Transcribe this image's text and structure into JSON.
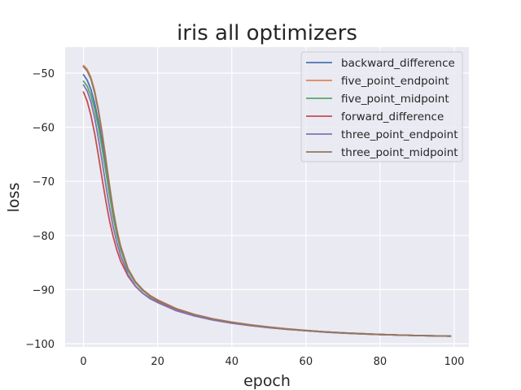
{
  "chart_data": {
    "type": "line",
    "title": "iris all optimizers",
    "xlabel": "epoch",
    "ylabel": "loss",
    "xlim": [
      -4.95,
      103.95
    ],
    "ylim": [
      -100.6,
      -45.2
    ],
    "xticks": [
      0,
      20,
      40,
      60,
      80,
      100
    ],
    "xtick_labels": [
      "0",
      "20",
      "40",
      "60",
      "80",
      "100"
    ],
    "yticks": [
      -50,
      -60,
      -70,
      -80,
      -90,
      -100
    ],
    "ytick_labels": [
      "−50",
      "−60",
      "−70",
      "−80",
      "−90",
      "−100"
    ],
    "grid": true,
    "legend_position": "upper right",
    "background_color": "#eaeaf2",
    "grid_color": "#ffffff",
    "x": [
      0,
      1,
      2,
      3,
      4,
      5,
      6,
      7,
      8,
      9,
      10,
      12,
      14,
      16,
      18,
      20,
      25,
      30,
      35,
      40,
      45,
      50,
      55,
      60,
      65,
      70,
      75,
      80,
      85,
      90,
      95,
      99
    ],
    "series": [
      {
        "name": "backward_difference",
        "color": "#4c72b0",
        "values": [
          -50.3,
          -51.3,
          -53.0,
          -55.5,
          -58.9,
          -62.8,
          -67.2,
          -71.8,
          -76.0,
          -79.5,
          -82.3,
          -86.3,
          -88.6,
          -90.1,
          -91.2,
          -92.0,
          -93.6,
          -94.7,
          -95.5,
          -96.1,
          -96.6,
          -97.0,
          -97.3,
          -97.6,
          -97.8,
          -98.0,
          -98.15,
          -98.3,
          -98.4,
          -98.5,
          -98.55,
          -98.6
        ]
      },
      {
        "name": "five_point_endpoint",
        "color": "#dd8452",
        "values": [
          -48.6,
          -49.3,
          -50.8,
          -53.2,
          -56.6,
          -60.8,
          -65.6,
          -70.6,
          -75.2,
          -78.9,
          -81.9,
          -86.1,
          -88.5,
          -90.0,
          -91.1,
          -91.9,
          -93.5,
          -94.6,
          -95.4,
          -96.0,
          -96.5,
          -96.9,
          -97.25,
          -97.55,
          -97.8,
          -98.0,
          -98.15,
          -98.3,
          -98.4,
          -98.5,
          -98.55,
          -98.6
        ]
      },
      {
        "name": "five_point_midpoint",
        "color": "#55a868",
        "values": [
          -51.5,
          -52.4,
          -54.1,
          -56.6,
          -59.9,
          -63.8,
          -68.1,
          -72.5,
          -76.6,
          -79.9,
          -82.6,
          -86.5,
          -88.7,
          -90.2,
          -91.25,
          -92.0,
          -93.6,
          -94.7,
          -95.5,
          -96.1,
          -96.6,
          -97.0,
          -97.3,
          -97.6,
          -97.8,
          -98.0,
          -98.15,
          -98.3,
          -98.4,
          -98.5,
          -98.55,
          -98.6
        ]
      },
      {
        "name": "forward_difference",
        "color": "#c44e52",
        "values": [
          -53.5,
          -55.2,
          -57.8,
          -61.1,
          -65.1,
          -69.4,
          -73.5,
          -77.2,
          -80.2,
          -82.7,
          -84.7,
          -87.5,
          -89.4,
          -90.7,
          -91.6,
          -92.3,
          -93.8,
          -94.8,
          -95.6,
          -96.2,
          -96.65,
          -97.0,
          -97.35,
          -97.6,
          -97.85,
          -98.05,
          -98.2,
          -98.3,
          -98.4,
          -98.5,
          -98.55,
          -98.6
        ]
      },
      {
        "name": "three_point_endpoint",
        "color": "#8172b3",
        "values": [
          -52.2,
          -53.3,
          -55.3,
          -58.2,
          -62.0,
          -66.2,
          -70.6,
          -74.8,
          -78.4,
          -81.3,
          -83.7,
          -87.2,
          -89.3,
          -90.7,
          -91.7,
          -92.4,
          -93.9,
          -94.9,
          -95.65,
          -96.2,
          -96.65,
          -97.05,
          -97.35,
          -97.6,
          -97.85,
          -98.05,
          -98.2,
          -98.3,
          -98.4,
          -98.5,
          -98.55,
          -98.6
        ]
      },
      {
        "name": "three_point_midpoint",
        "color": "#937860",
        "values": [
          -48.8,
          -49.6,
          -51.1,
          -53.6,
          -57.0,
          -61.2,
          -66.0,
          -70.9,
          -75.4,
          -79.1,
          -82.0,
          -86.2,
          -88.6,
          -90.1,
          -91.15,
          -91.95,
          -93.55,
          -94.65,
          -95.45,
          -96.05,
          -96.55,
          -96.95,
          -97.3,
          -97.55,
          -97.8,
          -98.0,
          -98.15,
          -98.3,
          -98.4,
          -98.5,
          -98.55,
          -98.6
        ]
      }
    ]
  }
}
